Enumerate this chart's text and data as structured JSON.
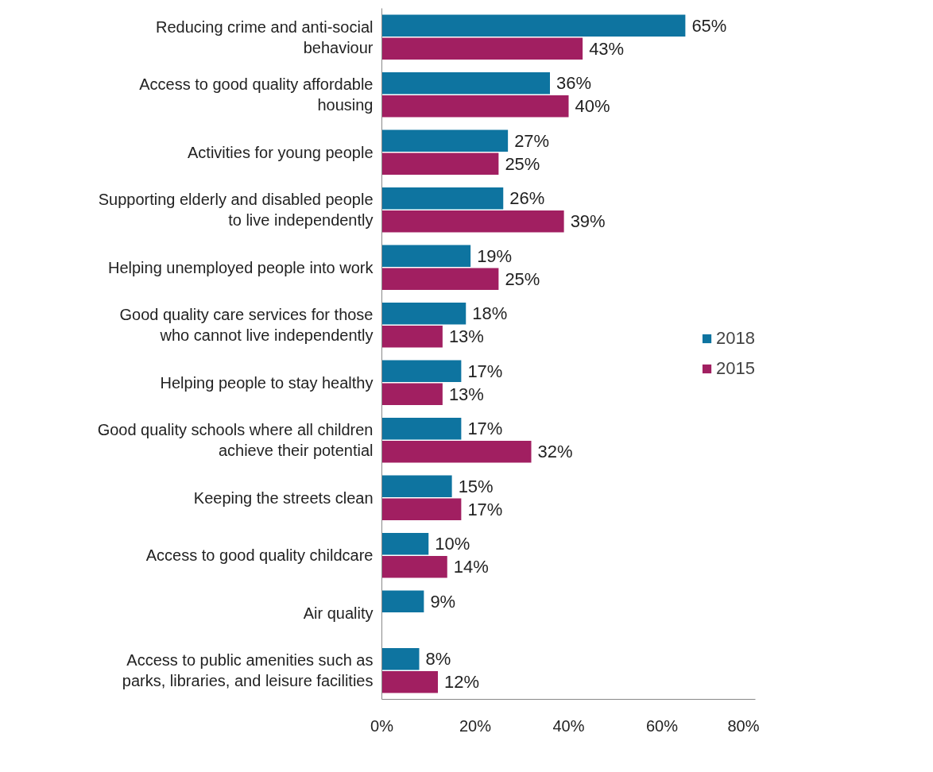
{
  "chart_data": {
    "type": "bar",
    "orientation": "horizontal",
    "categories": [
      "Reducing crime and anti-social\nbehaviour",
      "Access to good quality affordable\nhousing",
      "Activities for young people",
      "Supporting elderly and disabled people\nto live independently",
      "Helping unemployed people into work",
      "Good quality care services for those\nwho cannot live independently",
      "Helping people to stay healthy",
      "Good quality schools where all children\nachieve their potential",
      "Keeping the streets clean",
      "Access to good quality childcare",
      "Air quality",
      "Access to public amenities such as\nparks, libraries, and leisure facilities"
    ],
    "series": [
      {
        "name": "2018",
        "color": "#0e74a0",
        "values": [
          65,
          36,
          27,
          26,
          19,
          18,
          17,
          17,
          15,
          10,
          9,
          8
        ],
        "value_labels": [
          "65%",
          "36%",
          "27%",
          "26%",
          "19%",
          "18%",
          "17%",
          "17%",
          "15%",
          "10%",
          "9%",
          "8%"
        ]
      },
      {
        "name": "2015",
        "color": "#a11f61",
        "values": [
          43,
          40,
          25,
          39,
          25,
          13,
          13,
          32,
          17,
          14,
          null,
          12
        ],
        "value_labels": [
          "43%",
          "40%",
          "25%",
          "39%",
          "25%",
          "13%",
          "13%",
          "32%",
          "17%",
          "14%",
          null,
          "12%"
        ]
      }
    ],
    "xlim": [
      0,
      80
    ],
    "xticks": [
      {
        "value": 0,
        "label": "0%"
      },
      {
        "value": 20,
        "label": "20%"
      },
      {
        "value": 40,
        "label": "40%"
      },
      {
        "value": 60,
        "label": "60%"
      },
      {
        "value": 80,
        "label": "80%"
      }
    ],
    "legend": "right",
    "grid": false
  }
}
